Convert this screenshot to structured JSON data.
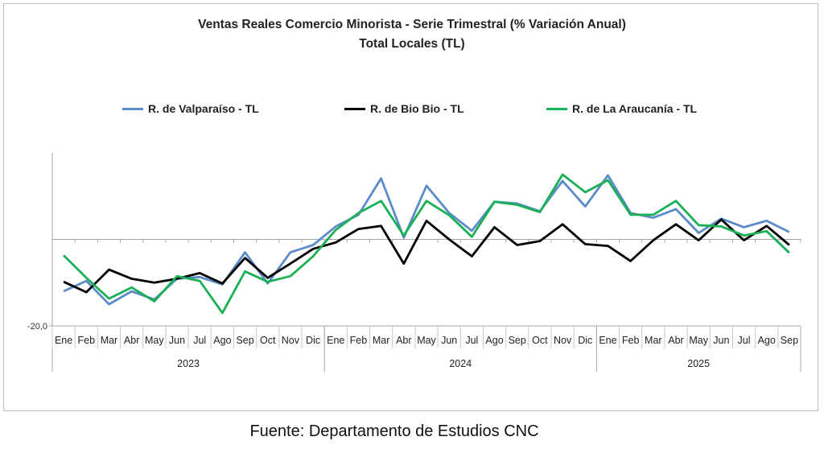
{
  "chart_data": {
    "type": "line",
    "title": "Ventas Reales Comercio Minorista - Serie Trimestral (% Variación Anual)",
    "subtitle": "Total Locales (TL)",
    "xlabel": "",
    "ylabel": "",
    "ylim": [
      -20,
      20
    ],
    "y_tick_labels": [
      "-20,0"
    ],
    "grid": false,
    "legend_position": "top",
    "categories": [
      "Ene",
      "Feb",
      "Mar",
      "Abr",
      "May",
      "Jun",
      "Jul",
      "Ago",
      "Sep",
      "Oct",
      "Nov",
      "Dic",
      "Ene",
      "Feb",
      "Mar",
      "Abr",
      "May",
      "Jun",
      "Jul",
      "Ago",
      "Sep",
      "Oct",
      "Nov",
      "Dic",
      "Ene",
      "Feb",
      "Mar",
      "Abr",
      "May",
      "Jun",
      "Jul",
      "Ago",
      "Sep"
    ],
    "year_groups": [
      {
        "label": "2023",
        "count": 12
      },
      {
        "label": "2024",
        "count": 12
      },
      {
        "label": "2025",
        "count": 9
      }
    ],
    "series": [
      {
        "name": "R. de Valparaíso - TL",
        "color": "#5b8cc8",
        "values": [
          -12.0,
          -9.6,
          -15.0,
          -12.0,
          -13.9,
          -9.1,
          -8.7,
          -10.4,
          -3.0,
          -10.2,
          -3.0,
          -1.3,
          3.0,
          5.7,
          14.1,
          0.4,
          12.4,
          6.1,
          2.0,
          8.7,
          8.3,
          6.5,
          13.5,
          7.6,
          14.8,
          6.1,
          5.0,
          7.0,
          1.5,
          4.8,
          2.8,
          4.3,
          1.7
        ]
      },
      {
        "name": "R. de Bio Bio - TL",
        "color": "#000000",
        "values": [
          -9.8,
          -12.2,
          -7.0,
          -9.1,
          -10.0,
          -9.1,
          -7.8,
          -10.2,
          -4.3,
          -8.9,
          -5.6,
          -2.2,
          -0.7,
          2.4,
          3.1,
          -5.6,
          4.3,
          0.0,
          -3.9,
          2.8,
          -1.3,
          -0.4,
          3.5,
          -1.1,
          -1.5,
          -5.0,
          -0.2,
          3.5,
          -0.2,
          4.6,
          -0.2,
          3.1,
          -1.3
        ]
      },
      {
        "name": "R. de La Araucanía - TL",
        "color": "#1bb055",
        "values": [
          -3.7,
          -8.9,
          -13.7,
          -11.1,
          -14.3,
          -8.5,
          -9.6,
          -17.0,
          -7.4,
          -9.8,
          -8.5,
          -3.9,
          2.2,
          6.1,
          8.9,
          0.9,
          8.9,
          5.6,
          0.6,
          8.7,
          8.0,
          6.3,
          15.0,
          10.9,
          13.7,
          5.7,
          5.7,
          8.9,
          3.3,
          3.0,
          0.9,
          1.9,
          -3.1
        ]
      }
    ]
  },
  "source": "Fuente: Departamento de Estudios CNC"
}
